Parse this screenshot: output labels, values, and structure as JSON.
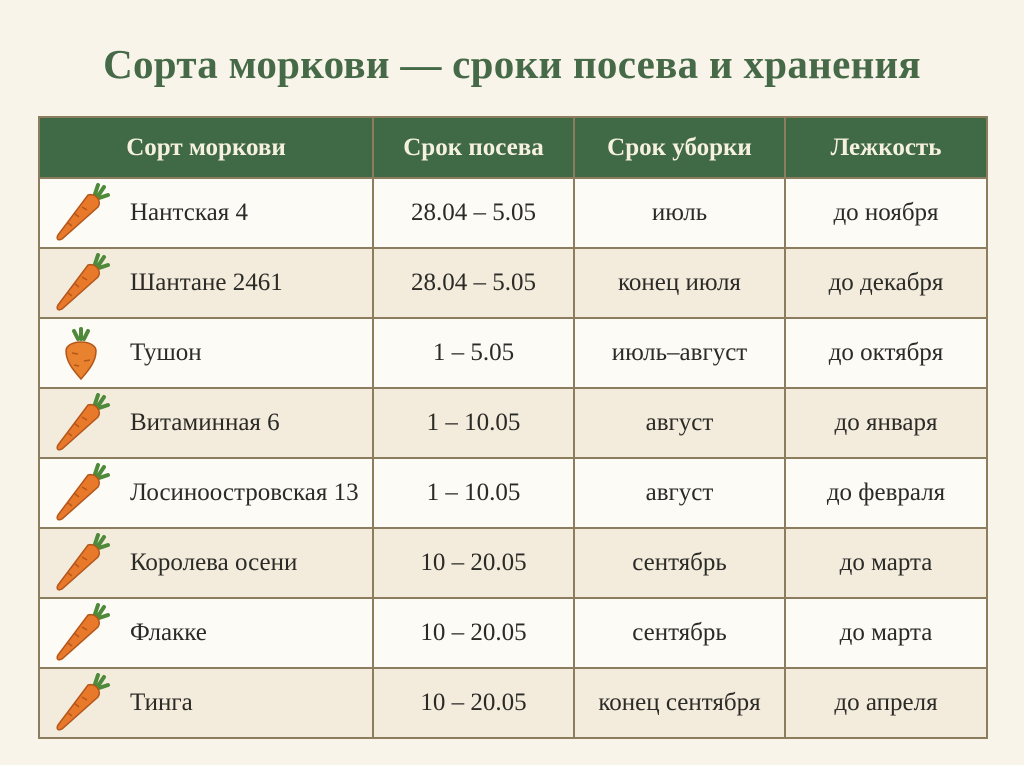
{
  "header": {
    "title": "Сорта моркови — сроки посева и хранения"
  },
  "table": {
    "columns": [
      "Сорт моркови",
      "Срок посева",
      "Срок уборки",
      "Лежкость"
    ],
    "rows": [
      [
        "Нантская 4",
        "28.04 – 5.05",
        "июль",
        "до ноября"
      ],
      [
        "Шантане 2461",
        "28.04 – 5.05",
        "конец июля",
        "до декабря"
      ],
      [
        "Тушон",
        "1 – 5.05",
        "июль–август",
        "до октября"
      ],
      [
        "Витаминная 6",
        "1 – 10.05",
        "август",
        "до января"
      ],
      [
        "Лосиноостровская 13",
        "1 – 10.05",
        "август",
        "до февраля"
      ],
      [
        "Королева осени",
        "10 – 20.05",
        "сентябрь",
        "до марта"
      ],
      [
        "Флакке",
        "10 – 20.05",
        "сентябрь",
        "до марта"
      ],
      [
        "Тинга",
        "10 – 20.05",
        "конец сентября",
        "до апреля"
      ]
    ]
  }
}
